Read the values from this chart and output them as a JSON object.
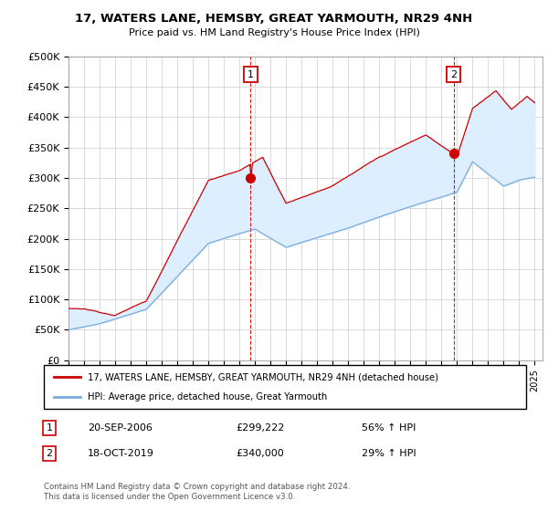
{
  "title": "17, WATERS LANE, HEMSBY, GREAT YARMOUTH, NR29 4NH",
  "subtitle": "Price paid vs. HM Land Registry's House Price Index (HPI)",
  "ylabel_ticks": [
    "£0",
    "£50K",
    "£100K",
    "£150K",
    "£200K",
    "£250K",
    "£300K",
    "£350K",
    "£400K",
    "£450K",
    "£500K"
  ],
  "ytick_values": [
    0,
    50000,
    100000,
    150000,
    200000,
    250000,
    300000,
    350000,
    400000,
    450000,
    500000
  ],
  "ylim": [
    0,
    500000
  ],
  "xlim_start": 1995.0,
  "xlim_end": 2025.5,
  "red_color": "#cc0000",
  "blue_color": "#7aabdb",
  "fill_color": "#ddeeff",
  "marker1_x": 2006.72,
  "marker1_y": 299222,
  "marker2_x": 2019.79,
  "marker2_y": 340000,
  "legend_line1": "17, WATERS LANE, HEMSBY, GREAT YARMOUTH, NR29 4NH (detached house)",
  "legend_line2": "HPI: Average price, detached house, Great Yarmouth",
  "note1_label": "1",
  "note1_date": "20-SEP-2006",
  "note1_price": "£299,222",
  "note1_hpi": "56% ↑ HPI",
  "note2_label": "2",
  "note2_date": "18-OCT-2019",
  "note2_price": "£340,000",
  "note2_hpi": "29% ↑ HPI",
  "footer": "Contains HM Land Registry data © Crown copyright and database right 2024.\nThis data is licensed under the Open Government Licence v3.0."
}
